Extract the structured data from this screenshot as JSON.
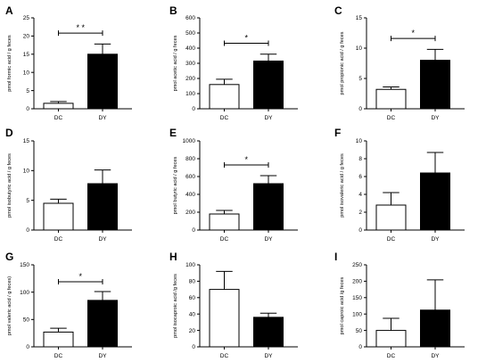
{
  "chart_data": [
    {
      "type": "bar",
      "letter": "A",
      "ylabel": "pmol formic acid / g feces",
      "categories": [
        "DC",
        "DY"
      ],
      "values": [
        1.5,
        15
      ],
      "errors": [
        0.5,
        2.8
      ],
      "ylim": [
        0,
        25
      ],
      "yticks": [
        0,
        5,
        10,
        15,
        20,
        25
      ],
      "colors": [
        "#ffffff",
        "#000000"
      ],
      "significance": "* *"
    },
    {
      "type": "bar",
      "letter": "B",
      "ylabel": "pmol acetic acid / g feces",
      "categories": [
        "DC",
        "DY"
      ],
      "values": [
        160,
        315
      ],
      "errors": [
        35,
        45
      ],
      "ylim": [
        0,
        600
      ],
      "yticks": [
        0,
        100,
        200,
        300,
        400,
        500,
        600
      ],
      "colors": [
        "#ffffff",
        "#000000"
      ],
      "significance": "*"
    },
    {
      "type": "bar",
      "letter": "C",
      "ylabel": "pmol propionic acid / g feces",
      "categories": [
        "DC",
        "DY"
      ],
      "values": [
        3.2,
        8
      ],
      "errors": [
        0.4,
        1.8
      ],
      "ylim": [
        0,
        15
      ],
      "yticks": [
        0,
        5,
        10,
        15
      ],
      "colors": [
        "#ffffff",
        "#000000"
      ],
      "significance": "*"
    },
    {
      "type": "bar",
      "letter": "D",
      "ylabel": "pmol isobutyric acid / g feces",
      "categories": [
        "DC",
        "DY"
      ],
      "values": [
        4.5,
        7.8
      ],
      "errors": [
        0.7,
        2.3
      ],
      "ylim": [
        0,
        15
      ],
      "yticks": [
        0,
        5,
        10,
        15
      ],
      "colors": [
        "#ffffff",
        "#000000"
      ],
      "significance": ""
    },
    {
      "type": "bar",
      "letter": "E",
      "ylabel": "pmol butyric acid / g feces",
      "categories": [
        "DC",
        "DY"
      ],
      "values": [
        180,
        520
      ],
      "errors": [
        40,
        90
      ],
      "ylim": [
        0,
        1000
      ],
      "yticks": [
        0,
        200,
        400,
        600,
        800,
        1000
      ],
      "colors": [
        "#ffffff",
        "#000000"
      ],
      "significance": "*"
    },
    {
      "type": "bar",
      "letter": "F",
      "ylabel": "pmol isovaleric acid / g feces",
      "categories": [
        "DC",
        "DY"
      ],
      "values": [
        2.8,
        6.4
      ],
      "errors": [
        1.4,
        2.3
      ],
      "ylim": [
        0,
        10
      ],
      "yticks": [
        0,
        2,
        4,
        6,
        8,
        10
      ],
      "colors": [
        "#ffffff",
        "#000000"
      ],
      "significance": ""
    },
    {
      "type": "bar",
      "letter": "G",
      "ylabel": "pmol valeric acid / g feces)",
      "categories": [
        "DC",
        "DY"
      ],
      "values": [
        27,
        85
      ],
      "errors": [
        7,
        16
      ],
      "ylim": [
        0,
        150
      ],
      "yticks": [
        0,
        50,
        100,
        150
      ],
      "colors": [
        "#ffffff",
        "#000000"
      ],
      "significance": "*"
    },
    {
      "type": "bar",
      "letter": "H",
      "ylabel": "pmol isocaproic acid /g feces",
      "categories": [
        "DC",
        "DY"
      ],
      "values": [
        70,
        36
      ],
      "errors": [
        22,
        5
      ],
      "ylim": [
        0,
        100
      ],
      "yticks": [
        0,
        20,
        40,
        60,
        80,
        100
      ],
      "colors": [
        "#ffffff",
        "#000000"
      ],
      "significance": ""
    },
    {
      "type": "bar",
      "letter": "I",
      "ylabel": "pmol caproic acid /g feces",
      "categories": [
        "DC",
        "DY"
      ],
      "values": [
        50,
        112
      ],
      "errors": [
        37,
        92
      ],
      "ylim": [
        0,
        250
      ],
      "yticks": [
        0,
        50,
        100,
        150,
        200,
        250
      ],
      "colors": [
        "#ffffff",
        "#000000"
      ],
      "significance": ""
    }
  ]
}
